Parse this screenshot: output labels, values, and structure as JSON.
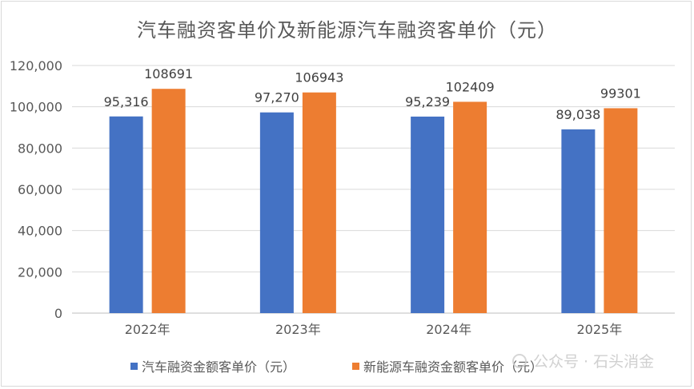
{
  "chart_data": {
    "type": "bar",
    "title": "汽车融资客单价及新能源汽车融资客单价（元）",
    "categories": [
      "2022年",
      "2023年",
      "2024年",
      "2025年"
    ],
    "series": [
      {
        "name": "汽车融资金额客单价（元）",
        "color": "#4472C4",
        "values": [
          95316,
          97270,
          95239,
          89038
        ],
        "labels": [
          "95,316",
          "97,270",
          "95,239",
          "89,038"
        ]
      },
      {
        "name": "新能源车融资金额客单价（元）",
        "color": "#ED7D31",
        "values": [
          108691,
          106943,
          102409,
          99301
        ],
        "labels": [
          "108691",
          "106943",
          "102409",
          "99301"
        ]
      }
    ],
    "ylim": [
      0,
      120000
    ],
    "yticks": [
      0,
      20000,
      40000,
      60000,
      80000,
      100000,
      120000
    ],
    "ytick_labels": [
      "0",
      "20,000",
      "40,000",
      "60,000",
      "80,000",
      "100,000",
      "120,000"
    ],
    "grid": true,
    "legend_position": "bottom"
  },
  "watermark": {
    "text": "公众号 · 石头消金"
  }
}
